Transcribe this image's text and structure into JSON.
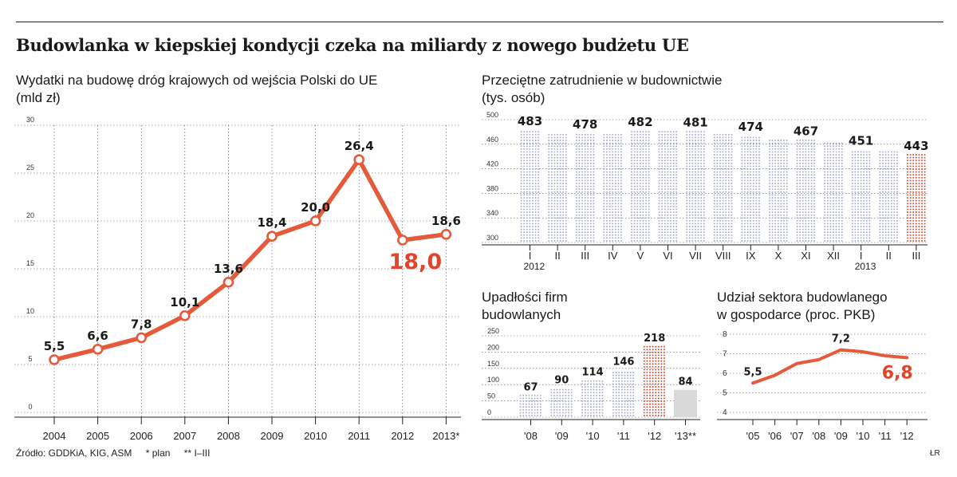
{
  "title": "Budowlanka w kiepskiej kondycji czeka na miliardy z nowego budżetu UE",
  "colors": {
    "accent": "#e0452b",
    "line": "#e55a3a",
    "dot_blue": "#a6a9cf",
    "dot_red": "#d9432b",
    "grey_bar": "#d9d9d9"
  },
  "footer": {
    "source": "Źródło: GDDKiA, KIG, ASM",
    "note_plan": "* plan",
    "note_q": "** I–III",
    "credit": "ŁR"
  },
  "chart_data": [
    {
      "type": "line",
      "title": "Wydatki na budowę dróg krajowych od wejścia Polski do UE",
      "subtitle": "(mld zł)",
      "categories": [
        "2004",
        "2005",
        "2006",
        "2007",
        "2008",
        "2009",
        "2010",
        "2011",
        "2012",
        "2013*"
      ],
      "values": [
        5.5,
        6.6,
        7.8,
        10.1,
        13.6,
        18.4,
        20.0,
        26.4,
        18.0,
        18.6
      ],
      "labels": [
        "5,5",
        "6,6",
        "7,8",
        "10,1",
        "13,6",
        "18,4",
        "20,0",
        "26,4",
        "18,0",
        "18,6"
      ],
      "highlight_index": 8,
      "yticks": [
        "0",
        "5",
        "10",
        "15",
        "20",
        "25",
        "30"
      ],
      "ylim": [
        0,
        30
      ],
      "grid": true
    },
    {
      "type": "bar",
      "title": "Przeciętne zatrudnienie w budownictwie",
      "subtitle": "(tys. osób)",
      "categories": [
        "I",
        "II",
        "III",
        "IV",
        "V",
        "VI",
        "VII",
        "VIII",
        "IX",
        "X",
        "XI",
        "XII",
        "I",
        "II",
        "III"
      ],
      "values": [
        483,
        477,
        478,
        477,
        482,
        481,
        481,
        476,
        474,
        470,
        467,
        462,
        451,
        448,
        443
      ],
      "labels": [
        "483",
        "",
        "478",
        "",
        "482",
        "",
        "481",
        "",
        "474",
        "",
        "467",
        "",
        "451",
        "",
        "443"
      ],
      "year_labels": [
        {
          "label": "2012",
          "index": 0
        },
        {
          "label": "2013",
          "index": 12
        }
      ],
      "highlight_index": 14,
      "yticks": [
        "300",
        "340",
        "380",
        "420",
        "460",
        "500"
      ],
      "ylim": [
        300,
        500
      ],
      "grid": true
    },
    {
      "type": "bar",
      "title": "Upadłości firm",
      "subtitle": "budowlanych",
      "categories": [
        "'08",
        "'09",
        "'10",
        "'11",
        "'12",
        "'13**"
      ],
      "values": [
        67,
        90,
        114,
        146,
        218,
        84
      ],
      "labels": [
        "67",
        "90",
        "114",
        "146",
        "218",
        "84"
      ],
      "highlight_index": 4,
      "solid_index": 5,
      "yticks": [
        "0",
        "50",
        "100",
        "150",
        "200",
        "250"
      ],
      "ylim": [
        0,
        250
      ],
      "grid": true
    },
    {
      "type": "line",
      "title": "Udział sektora budowlanego",
      "subtitle": "w gospodarce (proc. PKB)",
      "categories": [
        "'05",
        "'06",
        "'07",
        "'08",
        "'09",
        "'10",
        "'11",
        "'12"
      ],
      "values": [
        5.5,
        5.9,
        6.5,
        6.7,
        7.2,
        7.1,
        6.9,
        6.8
      ],
      "labels": [
        "5,5",
        "",
        "",
        "",
        "7,2",
        "",
        "",
        "6,8"
      ],
      "highlight_index": 7,
      "yticks": [
        "4",
        "5",
        "6",
        "7",
        "8"
      ],
      "ylim": [
        4,
        8
      ],
      "grid": true
    }
  ]
}
